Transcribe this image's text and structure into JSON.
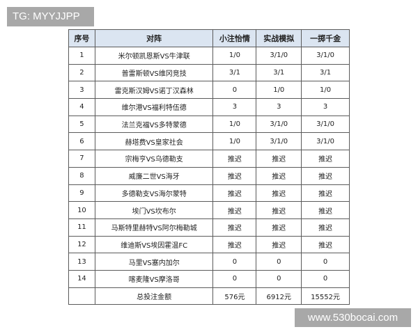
{
  "watermark_top": "TG: MYYJJPP",
  "watermark_bottom": "www.530bocai.com",
  "headers": [
    "序号",
    "对阵",
    "小注怡情",
    "实战模拟",
    "一掷千金"
  ],
  "rows": [
    [
      "1",
      "米尔顿凯恩斯VS牛津联",
      "1/0",
      "3/1/0",
      "3/1/0"
    ],
    [
      "2",
      "普雷斯顿VS维冈竞技",
      "3/1",
      "3/1",
      "3/1"
    ],
    [
      "3",
      "雷克斯汉姆VS诺丁汉森林",
      "0",
      "1/0",
      "1/0"
    ],
    [
      "4",
      "维尔港VS福利特伍德",
      "3",
      "3",
      "3"
    ],
    [
      "5",
      "法兰克福VS多特蒙德",
      "1/0",
      "3/1/0",
      "3/1/0"
    ],
    [
      "6",
      "赫塔费VS皇家社会",
      "1/0",
      "3/1/0",
      "3/1/0"
    ],
    [
      "7",
      "宗梅亨VS乌德勒支",
      "推迟",
      "推迟",
      "推迟"
    ],
    [
      "8",
      "威廉二世VS海牙",
      "推迟",
      "推迟",
      "推迟"
    ],
    [
      "9",
      "多德勒支VS海尔蒙特",
      "推迟",
      "推迟",
      "推迟"
    ],
    [
      "10",
      "埃门VS坎布尔",
      "推迟",
      "推迟",
      "推迟"
    ],
    [
      "11",
      "马斯特里赫特VS阿尔梅勒城",
      "推迟",
      "推迟",
      "推迟"
    ],
    [
      "12",
      "维迪斯VS埃因霍温FC",
      "推迟",
      "推迟",
      "推迟"
    ],
    [
      "13",
      "马里VS塞内加尔",
      "0",
      "0",
      "0"
    ],
    [
      "14",
      "喀麦隆VS摩洛哥",
      "0",
      "0",
      "0"
    ],
    [
      "",
      "总投注金额",
      "576元",
      "6912元",
      "15552元"
    ]
  ]
}
